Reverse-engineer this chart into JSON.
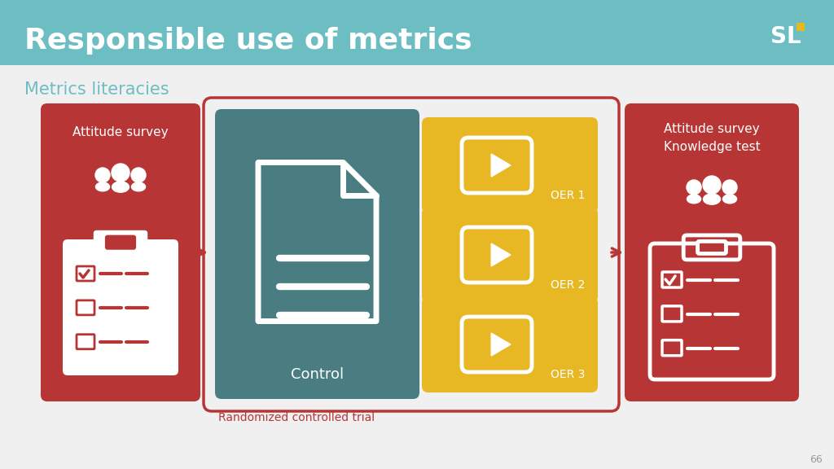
{
  "title": "Responsible use of metrics",
  "subtitle": "Metrics literacies",
  "title_bg_color": "#6dbec2",
  "title_text_color": "#ffffff",
  "subtitle_text_color": "#6dbec2",
  "bg_color": "#f0f0f0",
  "red_color": "#b83535",
  "teal_color": "#4a7d82",
  "gold_color": "#e8b824",
  "white": "#ffffff",
  "page_number": "66",
  "box1_label": "Attitude survey",
  "box2_label": "Control",
  "box3_label": "Randomized controlled trial",
  "box4_label": "OER 1",
  "box5_label": "OER 2",
  "box6_label": "OER 3",
  "box7_label1": "Attitude survey",
  "box7_label2": "Knowledge test"
}
